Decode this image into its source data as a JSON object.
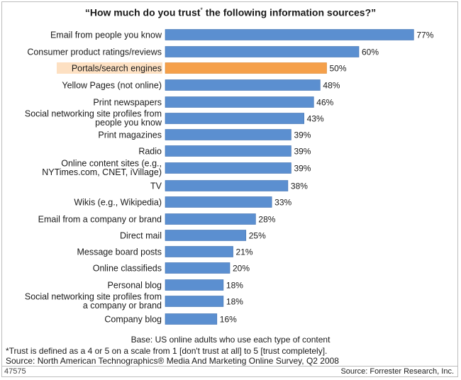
{
  "chart_data": {
    "type": "bar",
    "orientation": "horizontal",
    "title": "“How much do you trust",
    "title_mark": "*",
    "title_end": " the following information sources?”",
    "categories": [
      "Email from people you know",
      "Consumer product ratings/reviews",
      "Portals/search engines",
      "Yellow Pages (not online)",
      "Print newspapers",
      "Social networking site profiles from|people you know",
      "Print magazines",
      "Radio",
      "Online content sites (e.g.,|NYTimes.com, CNET, iVillage)",
      "TV",
      "Wikis (e.g., Wikipedia)",
      "Email from a company or brand",
      "Direct mail",
      "Message board posts",
      "Online classifieds",
      "Personal blog",
      "Social networking site profiles from|a company or brand",
      "Company blog"
    ],
    "values": [
      77,
      60,
      50,
      48,
      46,
      43,
      39,
      39,
      39,
      38,
      33,
      28,
      25,
      21,
      20,
      18,
      18,
      16
    ],
    "value_labels": [
      "77%",
      "60%",
      "50%",
      "48%",
      "46%",
      "43%",
      "39%",
      "39%",
      "39%",
      "38%",
      "33%",
      "28%",
      "25%",
      "21%",
      "20%",
      "18%",
      "18%",
      "16%"
    ],
    "highlight_index": 2,
    "xlim": [
      0,
      100
    ],
    "grid": false,
    "legend": "none",
    "colors": {
      "bar": "#5b8fd0",
      "bar_edge": "#3e6faf",
      "highlight": "#f5a04a",
      "highlight_edge": "#d98530",
      "highlight_label_bg": "#fde0c2"
    }
  },
  "footnotes": {
    "base": "Base: US online adults who use each type of content",
    "definition": "*Trust is defined as a 4 or 5 on a scale from 1 [don't trust at all] to 5 [trust completely].",
    "source": "Source: North American Technographics® Media And Marketing Online Survey, Q2 2008"
  },
  "figure_id": "47575",
  "credit": "Source: Forrester Research, Inc."
}
